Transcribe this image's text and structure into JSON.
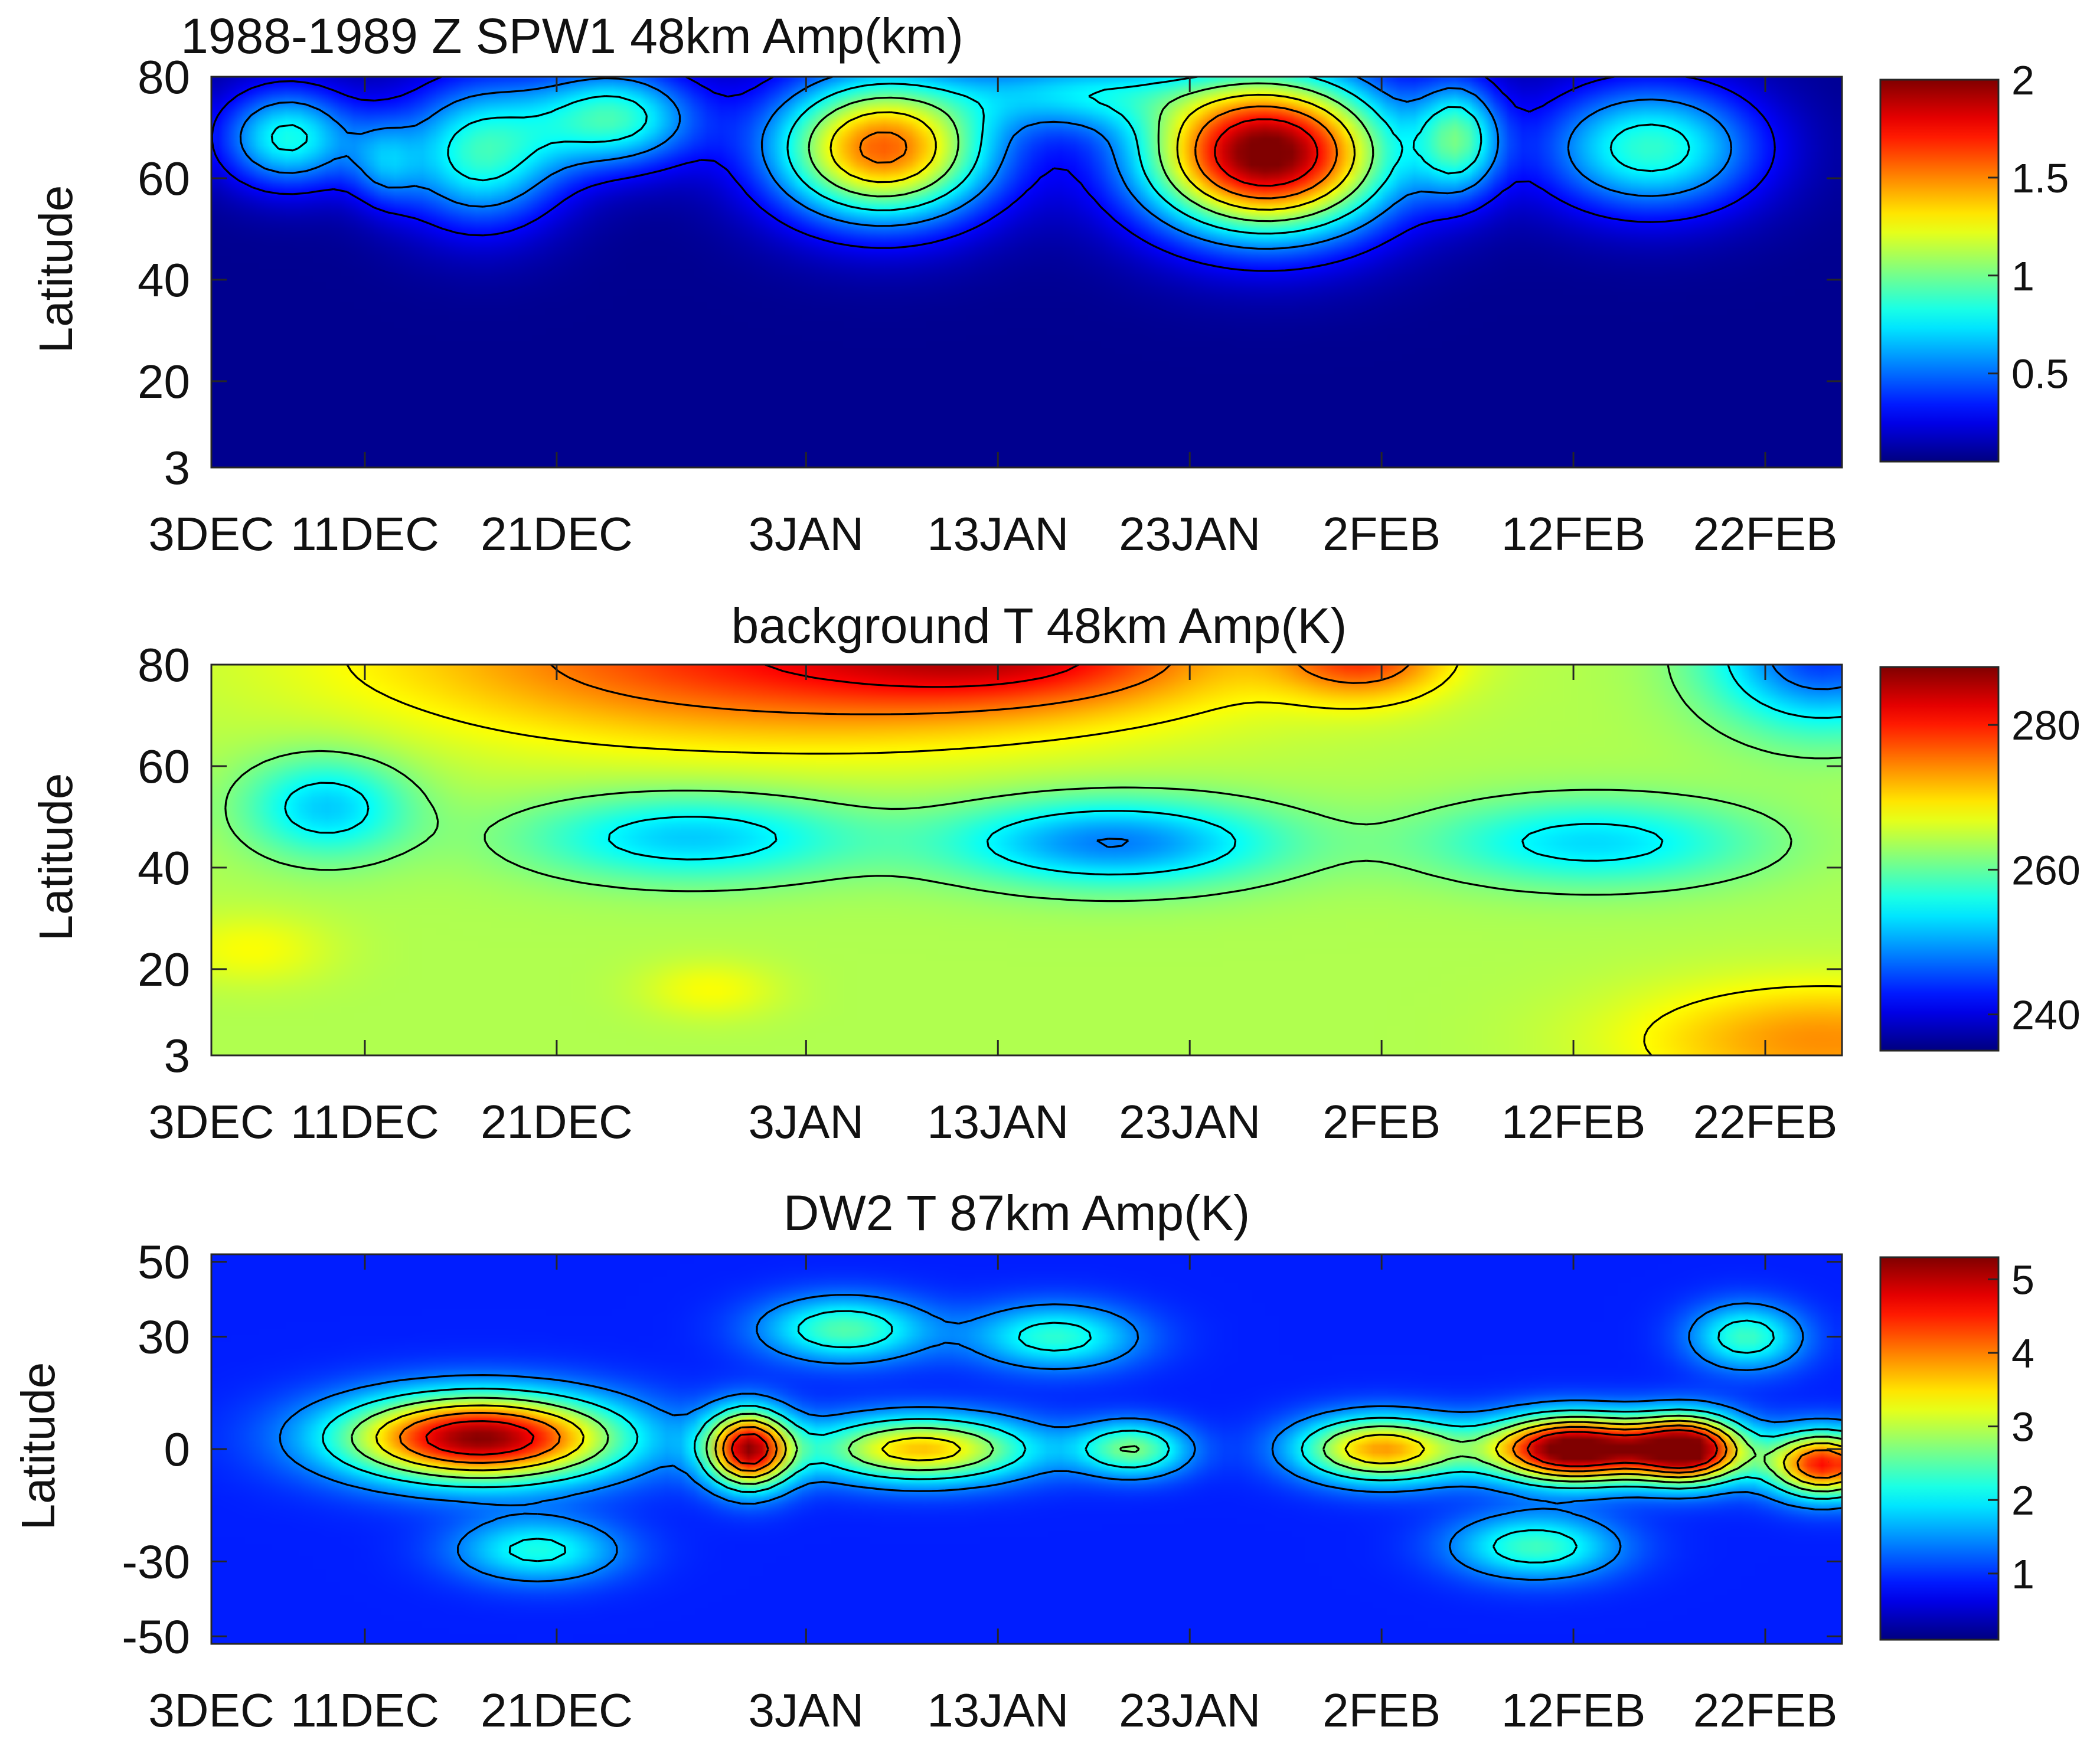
{
  "chart_data": [
    {
      "type": "heatmap",
      "title": "1988-1989 Z SPW1 48km Amp(km)",
      "xlabel": "",
      "ylabel": "Latitude",
      "x_tick_labels": [
        "3DEC",
        "11DEC",
        "21DEC",
        "3JAN",
        "13JAN",
        "23JAN",
        "2FEB",
        "12FEB",
        "22FEB"
      ],
      "x_tick_days": [
        0,
        8,
        18,
        31,
        41,
        51,
        61,
        71,
        81
      ],
      "x_range_days": [
        0,
        85
      ],
      "y_ticks": [
        3,
        20,
        40,
        60,
        80
      ],
      "ylim": [
        3,
        80
      ],
      "colorbar": {
        "ticks": [
          0.5,
          1,
          1.5,
          2
        ],
        "range": [
          0.05,
          2.0
        ],
        "colormap": "jet"
      },
      "background_value": 0.08,
      "features": [
        {
          "day": 4,
          "lat": 68,
          "amp": 0.75,
          "sx": 2.5,
          "sy": 7
        },
        {
          "day": 9,
          "lat": 63,
          "amp": 0.35,
          "sx": 1.2,
          "sy": 6
        },
        {
          "day": 14,
          "lat": 65,
          "amp": 0.8,
          "sx": 3,
          "sy": 10
        },
        {
          "day": 21,
          "lat": 72,
          "amp": 0.8,
          "sx": 3,
          "sy": 7
        },
        {
          "day": 35,
          "lat": 66,
          "amp": 1.5,
          "sx": 4,
          "sy": 10
        },
        {
          "day": 45,
          "lat": 77,
          "amp": 0.55,
          "sx": 4,
          "sy": 5
        },
        {
          "day": 55,
          "lat": 65,
          "amp": 2.0,
          "sx": 4.5,
          "sy": 11
        },
        {
          "day": 65,
          "lat": 68,
          "amp": 0.75,
          "sx": 1.5,
          "sy": 8
        },
        {
          "day": 75,
          "lat": 66,
          "amp": 0.8,
          "sx": 4,
          "sy": 9
        }
      ]
    },
    {
      "type": "heatmap",
      "title": "background T 48km Amp(K)",
      "xlabel": "",
      "ylabel": "Latitude",
      "x_tick_labels": [
        "3DEC",
        "11DEC",
        "21DEC",
        "3JAN",
        "13JAN",
        "23JAN",
        "2FEB",
        "12FEB",
        "22FEB"
      ],
      "x_tick_days": [
        0,
        8,
        18,
        31,
        41,
        51,
        61,
        71,
        81
      ],
      "x_range_days": [
        0,
        85
      ],
      "y_ticks": [
        3,
        20,
        40,
        60,
        80
      ],
      "ylim": [
        3,
        80
      ],
      "colorbar": {
        "ticks": [
          240,
          260,
          280
        ],
        "range": [
          235,
          288
        ],
        "colormap": "jet"
      },
      "background_value": 264,
      "features": [
        {
          "day": 30,
          "lat": 82,
          "amp": 16,
          "sx": 14,
          "sy": 12
        },
        {
          "day": 42,
          "lat": 82,
          "amp": 10,
          "sx": 7,
          "sy": 7
        },
        {
          "day": 60,
          "lat": 82,
          "amp": 14,
          "sx": 3,
          "sy": 6
        },
        {
          "day": 6,
          "lat": 52,
          "amp": -12,
          "sx": 3,
          "sy": 7
        },
        {
          "day": 25,
          "lat": 46,
          "amp": -12,
          "sx": 6,
          "sy": 6
        },
        {
          "day": 47,
          "lat": 45,
          "amp": -16,
          "sx": 6,
          "sy": 6
        },
        {
          "day": 72,
          "lat": 45,
          "amp": -11,
          "sx": 6,
          "sy": 6
        },
        {
          "day": 84,
          "lat": 82,
          "amp": -20,
          "sx": 4,
          "sy": 10
        },
        {
          "day": 2,
          "lat": 24,
          "amp": 4,
          "sx": 3,
          "sy": 5
        },
        {
          "day": 26,
          "lat": 16,
          "amp": 4,
          "sx": 2.5,
          "sy": 4
        },
        {
          "day": 84,
          "lat": 6,
          "amp": 10,
          "sx": 7,
          "sy": 8
        }
      ]
    },
    {
      "type": "heatmap",
      "title": "DW2 T 87km Amp(K)",
      "xlabel": "",
      "ylabel": "Latitude",
      "x_tick_labels": [
        "3DEC",
        "11DEC",
        "21DEC",
        "3JAN",
        "13JAN",
        "23JAN",
        "2FEB",
        "12FEB",
        "22FEB"
      ],
      "x_tick_days": [
        0,
        8,
        18,
        31,
        41,
        51,
        61,
        71,
        81
      ],
      "x_range_days": [
        0,
        85
      ],
      "y_ticks": [
        -50,
        -30,
        0,
        30,
        50
      ],
      "ylim": [
        -52,
        52
      ],
      "colorbar": {
        "ticks": [
          1,
          2,
          3,
          4,
          5
        ],
        "range": [
          0.1,
          5.3
        ],
        "colormap": "jet"
      },
      "background_value": 0.9,
      "features": [
        {
          "day": 14,
          "lat": 3,
          "amp": 4.4,
          "sx": 5,
          "sy": 8
        },
        {
          "day": 28,
          "lat": 0,
          "amp": 4.2,
          "sx": 1.5,
          "sy": 7
        },
        {
          "day": 37,
          "lat": 0,
          "amp": 2.8,
          "sx": 4,
          "sy": 6
        },
        {
          "day": 48,
          "lat": 0,
          "amp": 1.8,
          "sx": 2,
          "sy": 5
        },
        {
          "day": 61,
          "lat": 0,
          "amp": 3.0,
          "sx": 3,
          "sy": 6
        },
        {
          "day": 71,
          "lat": 0,
          "amp": 5.0,
          "sx": 3,
          "sy": 6
        },
        {
          "day": 77,
          "lat": 0,
          "amp": 4.6,
          "sx": 2,
          "sy": 6
        },
        {
          "day": 84,
          "lat": -4,
          "amp": 3.8,
          "sx": 2,
          "sy": 6
        },
        {
          "day": 33,
          "lat": 32,
          "amp": 1.6,
          "sx": 3,
          "sy": 6
        },
        {
          "day": 44,
          "lat": 30,
          "amp": 1.4,
          "sx": 3,
          "sy": 6
        },
        {
          "day": 17,
          "lat": -27,
          "amp": 1.3,
          "sx": 3,
          "sy": 6
        },
        {
          "day": 69,
          "lat": -26,
          "amp": 1.5,
          "sx": 3,
          "sy": 6
        },
        {
          "day": 80,
          "lat": 30,
          "amp": 1.5,
          "sx": 2,
          "sy": 6
        }
      ]
    }
  ],
  "colors": {
    "axis": "#262626",
    "contour": "#000000",
    "background": "#ffffff"
  }
}
